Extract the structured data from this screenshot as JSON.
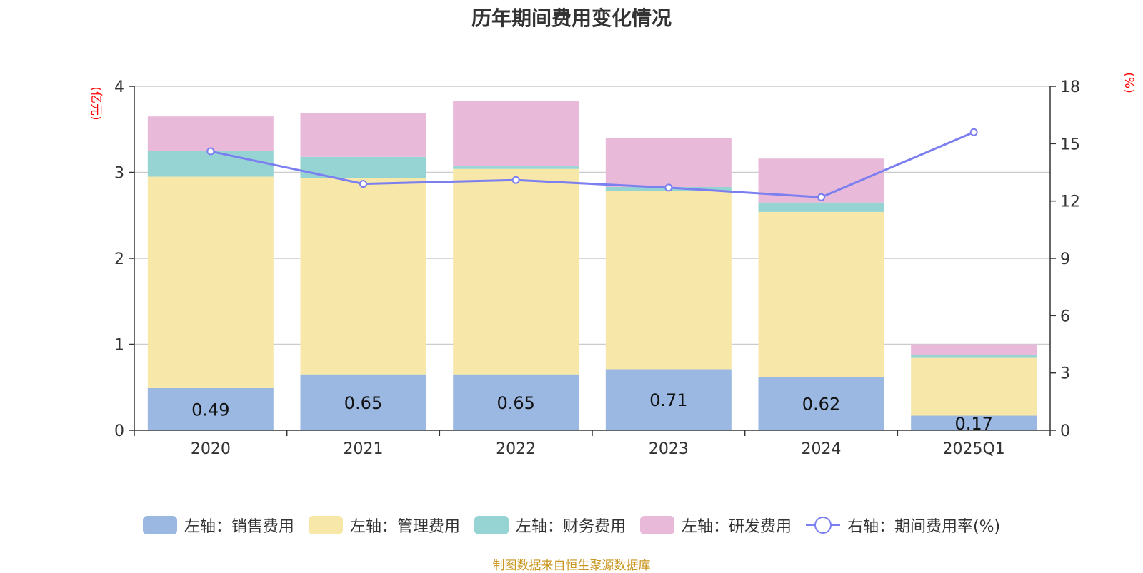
{
  "chart_data": {
    "type": "bar",
    "title": "历年期间费用变化情况",
    "categories": [
      "2020",
      "2021",
      "2022",
      "2023",
      "2024",
      "2025Q1"
    ],
    "y_left": {
      "label": "(亿元)",
      "ylim": [
        0,
        4
      ],
      "ticks": [
        "0",
        "1",
        "2",
        "3",
        "4"
      ]
    },
    "y_right": {
      "label": "(%)",
      "ylim": [
        0,
        18
      ],
      "ticks": [
        "0",
        "3",
        "6",
        "9",
        "12",
        "15",
        "18"
      ]
    },
    "series": [
      {
        "name": "左轴：销售费用",
        "axis": "left",
        "type": "bar",
        "stack": true,
        "color": "#9bb8e2",
        "values": [
          0.49,
          0.65,
          0.65,
          0.71,
          0.62,
          0.17
        ],
        "labels": [
          "0.49",
          "0.65",
          "0.65",
          "0.71",
          "0.62",
          "0.17"
        ]
      },
      {
        "name": "左轴：管理费用",
        "axis": "left",
        "type": "bar",
        "stack": true,
        "color": "#f7e7a8",
        "values": [
          2.46,
          2.28,
          2.39,
          2.07,
          1.92,
          0.68
        ]
      },
      {
        "name": "左轴：财务费用",
        "axis": "left",
        "type": "bar",
        "stack": true,
        "color": "#96d4d4",
        "values": [
          0.3,
          0.25,
          0.03,
          0.05,
          0.11,
          0.03
        ]
      },
      {
        "name": "左轴：研发费用",
        "axis": "left",
        "type": "bar",
        "stack": true,
        "color": "#e8b9d9",
        "values": [
          0.4,
          0.51,
          0.76,
          0.57,
          0.51,
          0.12
        ]
      },
      {
        "name": "右轴：期间费用率(%)",
        "axis": "right",
        "type": "line",
        "color": "#7b7ff0",
        "values": [
          14.6,
          12.9,
          13.1,
          12.7,
          12.2,
          15.6
        ]
      }
    ],
    "grid": true,
    "legend": "bottom"
  },
  "source_text": "制图数据来自恒生聚源数据库",
  "colors": {
    "axis_label": "#ff0000",
    "source": "#c8961e",
    "gridline": "#cccccc",
    "axis": "#333333"
  }
}
